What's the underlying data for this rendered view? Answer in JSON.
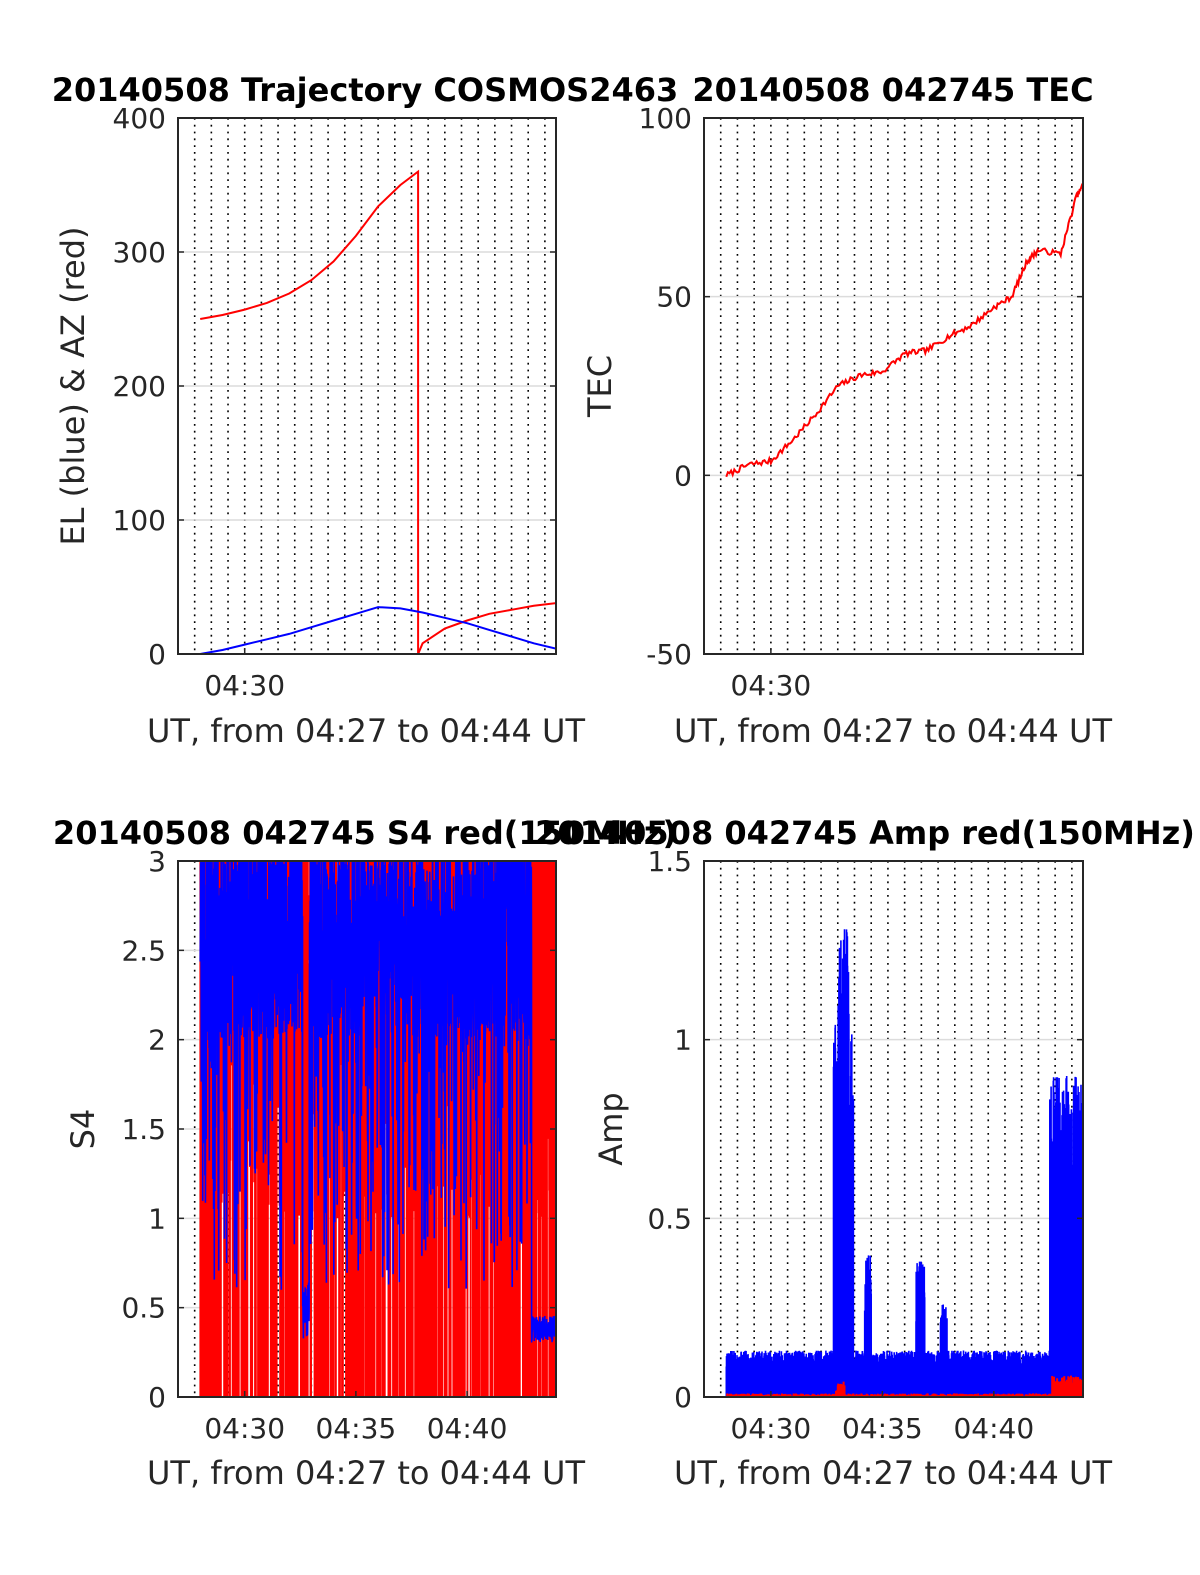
{
  "colors": {
    "el": "#0000ff",
    "az": "#ff0000",
    "amp_blue": "#0000ff",
    "amp_red": "#ff0000"
  },
  "chart_data": [
    {
      "id": "trajectory",
      "type": "line",
      "title": "20140508 Trajectory COSMOS2463",
      "xlabel": "UT, from 04:27 to 04:44 UT",
      "ylabel": "EL (blue) & AZ (red)",
      "xlim": [
        "04:27",
        "04:44"
      ],
      "ylim": [
        0,
        400
      ],
      "yticks": [
        0,
        100,
        200,
        300,
        400
      ],
      "xtick_labels": [
        "04:30"
      ],
      "grid": true,
      "series": [
        {
          "color": "#ff0000",
          "x": [
            "04:28",
            "04:29",
            "04:30",
            "04:31",
            "04:32",
            "04:33",
            "04:34",
            "04:35",
            "04:36",
            "04:37",
            "04:37.8",
            "04:37.8",
            "04:38",
            "04:39",
            "04:40",
            "04:41",
            "04:42",
            "04:43",
            "04:44"
          ],
          "values": [
            250,
            253,
            257,
            262,
            269,
            279,
            293,
            312,
            334,
            350,
            360,
            0,
            8,
            19,
            25,
            30,
            33,
            36,
            38
          ]
        },
        {
          "color": "#0000ff",
          "x": [
            "04:28",
            "04:29",
            "04:30",
            "04:31",
            "04:32",
            "04:33",
            "04:34",
            "04:35",
            "04:35.8",
            "04:36",
            "04:37",
            "04:38",
            "04:39",
            "04:40",
            "04:41",
            "04:42",
            "04:43",
            "04:44"
          ],
          "values": [
            0,
            3,
            7,
            11,
            15,
            20,
            25,
            30,
            34,
            35,
            34,
            31,
            27,
            23,
            18,
            13,
            8,
            4
          ]
        }
      ]
    },
    {
      "id": "tec",
      "type": "line",
      "title": "20140508 042745 TEC",
      "xlabel": "UT, from 04:27 to 04:44 UT",
      "ylabel": "TEC",
      "xlim": [
        "04:27",
        "04:44"
      ],
      "ylim": [
        -50,
        100
      ],
      "yticks": [
        -50,
        0,
        50,
        100
      ],
      "xtick_labels": [
        "04:30"
      ],
      "grid": true,
      "series": [
        {
          "color": "#ff0000",
          "x": [
            "04:28",
            "04:29",
            "04:30",
            "04:31",
            "04:32",
            "04:33",
            "04:34",
            "04:35",
            "04:36",
            "04:37",
            "04:38",
            "04:39",
            "04:40",
            "04:40.8",
            "04:41.5",
            "04:42",
            "04:43",
            "04:43.7",
            "04:44"
          ],
          "values": [
            0,
            3,
            4,
            10,
            17,
            25,
            28,
            29,
            34,
            35,
            39,
            42,
            47,
            50,
            60,
            63,
            62,
            78,
            81
          ]
        }
      ]
    },
    {
      "id": "s4",
      "type": "line",
      "title": "20140508 042745 S4 red(150MHz)",
      "xlabel": "UT, from 04:27 to 04:44 UT",
      "ylabel": "S4",
      "xlim": [
        "04:27",
        "04:44"
      ],
      "ylim": [
        0,
        3
      ],
      "yticks": [
        0,
        0.5,
        1,
        1.5,
        2,
        2.5,
        3
      ],
      "xtick_labels": [
        "04:30",
        "04:35",
        "04:40"
      ],
      "grid": true,
      "series": [
        {
          "color": "#ff0000",
          "description": "noisy signal"
        },
        {
          "color": "#0000ff",
          "description": "noisy signal"
        }
      ]
    },
    {
      "id": "amp",
      "type": "line",
      "title": "20140508 042745 Amp red(150MHz)",
      "xlabel": "UT, from 04:27 to 04:44 UT",
      "ylabel": "Amp",
      "xlim": [
        "04:27",
        "04:44"
      ],
      "ylim": [
        0,
        1.5
      ],
      "yticks": [
        0,
        0.5,
        1,
        1.5
      ],
      "xtick_labels": [
        "04:30",
        "04:35",
        "04:40"
      ],
      "grid": true,
      "series": [
        {
          "color": "#0000ff",
          "description": "noisy amplitude, peak ~1.33 near 04:33"
        },
        {
          "color": "#ff0000",
          "description": "low amplitude near zero"
        }
      ]
    }
  ]
}
